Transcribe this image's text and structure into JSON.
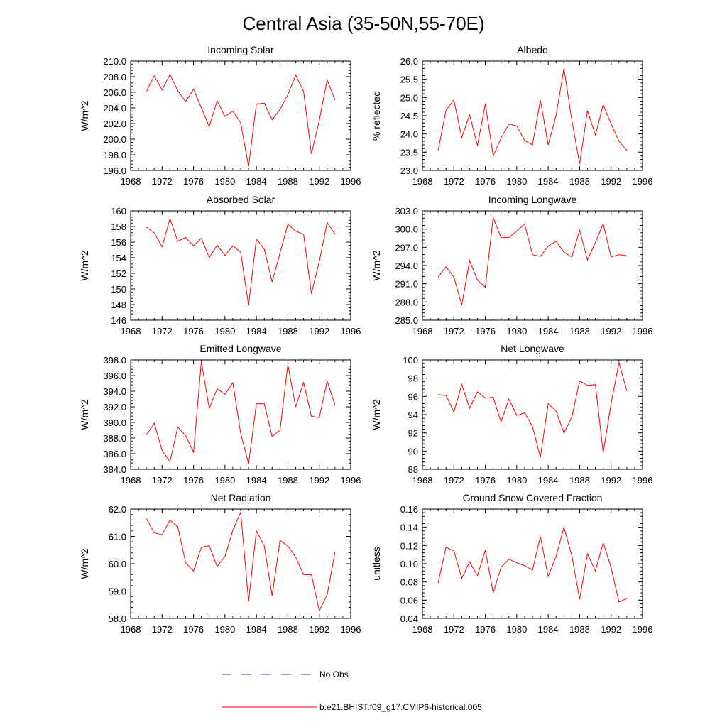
{
  "title": "Central Asia (35-50N,55-70E)",
  "x_ticks": [
    "1968",
    "1972",
    "1976",
    "1980",
    "1984",
    "1988",
    "1992",
    "1996"
  ],
  "legend": {
    "obs_label": "No Obs",
    "model_label": "b.e21.BHIST.f09_g17.CMIP6-historical.005",
    "obs_color": "#3a4fd0",
    "model_color": "#ff0000"
  },
  "chart_data": [
    {
      "type": "line",
      "title": "Incoming Solar",
      "ylabel": "W/m^2",
      "xlim": [
        1968,
        1996
      ],
      "ylim": [
        196,
        210
      ],
      "yticks": [
        196,
        198,
        200,
        202,
        204,
        206,
        208,
        210
      ],
      "ytick_labels": [
        "196.0",
        "198.0",
        "200.0",
        "202.0",
        "204.0",
        "206.0",
        "208.0",
        "210.0"
      ],
      "x": [
        1970,
        1971,
        1972,
        1973,
        1974,
        1975,
        1976,
        1977,
        1978,
        1979,
        1980,
        1981,
        1982,
        1983,
        1984,
        1985,
        1986,
        1987,
        1988,
        1989,
        1990,
        1991,
        1992,
        1993,
        1994
      ],
      "values": [
        206.1,
        208.1,
        206.3,
        208.3,
        206.2,
        204.8,
        206.4,
        204.0,
        201.6,
        204.9,
        202.9,
        203.6,
        202.1,
        196.5,
        204.5,
        204.6,
        202.5,
        203.8,
        205.7,
        208.2,
        206.1,
        198.1,
        202.4,
        207.6,
        205.0
      ]
    },
    {
      "type": "line",
      "title": "Albedo",
      "ylabel": "% reflected",
      "xlim": [
        1968,
        1996
      ],
      "ylim": [
        23.0,
        26.0
      ],
      "yticks": [
        23.0,
        23.5,
        24.0,
        24.5,
        25.0,
        25.5,
        26.0
      ],
      "ytick_labels": [
        "23.0",
        "23.5",
        "24.0",
        "24.5",
        "25.0",
        "25.5",
        "26.0"
      ],
      "x": [
        1970,
        1971,
        1972,
        1973,
        1974,
        1975,
        1976,
        1977,
        1978,
        1979,
        1980,
        1981,
        1982,
        1983,
        1984,
        1985,
        1986,
        1987,
        1988,
        1989,
        1990,
        1991,
        1992,
        1993,
        1994
      ],
      "values": [
        23.55,
        24.65,
        24.93,
        23.9,
        24.53,
        23.68,
        24.83,
        23.4,
        23.88,
        24.27,
        24.22,
        23.82,
        23.7,
        24.93,
        23.7,
        24.5,
        25.8,
        24.38,
        23.18,
        24.64,
        23.97,
        24.8,
        24.28,
        23.8,
        23.55
      ]
    },
    {
      "type": "line",
      "title": "Absorbed Solar",
      "ylabel": "W/m^2",
      "xlim": [
        1968,
        1996
      ],
      "ylim": [
        146,
        160
      ],
      "yticks": [
        146,
        148,
        150,
        152,
        154,
        156,
        158,
        160
      ],
      "ytick_labels": [
        "146",
        "148",
        "150",
        "152",
        "154",
        "156",
        "158",
        "160"
      ],
      "x": [
        1970,
        1971,
        1972,
        1973,
        1974,
        1975,
        1976,
        1977,
        1978,
        1979,
        1980,
        1981,
        1982,
        1983,
        1984,
        1985,
        1986,
        1987,
        1988,
        1989,
        1990,
        1991,
        1992,
        1993,
        1994
      ],
      "values": [
        157.9,
        157.2,
        155.4,
        159.0,
        156.1,
        156.6,
        155.5,
        156.5,
        154.0,
        155.6,
        154.3,
        155.5,
        154.7,
        147.9,
        156.4,
        155.1,
        150.9,
        154.6,
        158.3,
        157.4,
        157.0,
        149.4,
        153.5,
        158.5,
        157.0
      ]
    },
    {
      "type": "line",
      "title": "Incoming Longwave",
      "ylabel": "W/m^2",
      "xlim": [
        1968,
        1996
      ],
      "ylim": [
        285,
        303
      ],
      "yticks": [
        285,
        288,
        291,
        294,
        297,
        300,
        303
      ],
      "ytick_labels": [
        "285.0",
        "288.0",
        "291.0",
        "294.0",
        "297.0",
        "300.0",
        "303.0"
      ],
      "x": [
        1970,
        1971,
        1972,
        1973,
        1974,
        1975,
        1976,
        1977,
        1978,
        1979,
        1980,
        1981,
        1982,
        1983,
        1984,
        1985,
        1986,
        1987,
        1988,
        1989,
        1990,
        1991,
        1992,
        1993,
        1994
      ],
      "values": [
        292.1,
        293.8,
        292.1,
        287.5,
        294.8,
        291.6,
        290.4,
        301.9,
        298.6,
        298.6,
        299.7,
        300.8,
        295.8,
        295.5,
        297.2,
        298.0,
        296.2,
        295.4,
        299.8,
        294.9,
        297.8,
        300.9,
        295.4,
        295.8,
        295.6
      ]
    },
    {
      "type": "line",
      "title": "Emitted Longwave",
      "ylabel": "W/m^2",
      "xlim": [
        1968,
        1996
      ],
      "ylim": [
        384,
        398
      ],
      "yticks": [
        384,
        386,
        388,
        390,
        392,
        394,
        396,
        398
      ],
      "ytick_labels": [
        "384.0",
        "386.0",
        "388.0",
        "390.0",
        "392.0",
        "394.0",
        "396.0",
        "398.0"
      ],
      "x": [
        1970,
        1971,
        1972,
        1973,
        1974,
        1975,
        1976,
        1977,
        1978,
        1979,
        1980,
        1981,
        1982,
        1983,
        1984,
        1985,
        1986,
        1987,
        1988,
        1989,
        1990,
        1991,
        1992,
        1993,
        1994
      ],
      "values": [
        388.4,
        389.9,
        386.4,
        385.0,
        389.4,
        388.3,
        386.2,
        397.8,
        391.8,
        394.3,
        393.6,
        395.1,
        388.6,
        384.7,
        392.4,
        392.4,
        388.2,
        389.0,
        397.4,
        392.0,
        395.1,
        390.8,
        390.6,
        395.3,
        392.2
      ]
    },
    {
      "type": "line",
      "title": "Net Longwave",
      "ylabel": "W/m^2",
      "xlim": [
        1968,
        1996
      ],
      "ylim": [
        88,
        100
      ],
      "yticks": [
        88,
        90,
        92,
        94,
        96,
        98,
        100
      ],
      "ytick_labels": [
        "88",
        "90",
        "92",
        "94",
        "96",
        "98",
        "100"
      ],
      "x": [
        1970,
        1971,
        1972,
        1973,
        1974,
        1975,
        1976,
        1977,
        1978,
        1979,
        1980,
        1981,
        1982,
        1983,
        1984,
        1985,
        1986,
        1987,
        1988,
        1989,
        1990,
        1991,
        1992,
        1993,
        1994
      ],
      "values": [
        96.2,
        96.1,
        94.3,
        97.3,
        94.7,
        96.5,
        95.8,
        95.9,
        93.2,
        95.7,
        93.9,
        94.2,
        92.7,
        89.3,
        95.2,
        94.4,
        92.0,
        93.7,
        97.7,
        97.2,
        97.3,
        89.8,
        95.2,
        99.7,
        96.6
      ]
    },
    {
      "type": "line",
      "title": "Net Radiation",
      "ylabel": "W/m^2",
      "xlim": [
        1968,
        1996
      ],
      "ylim": [
        58,
        62
      ],
      "yticks": [
        58,
        59,
        60,
        61,
        62
      ],
      "ytick_labels": [
        "58.0",
        "59.0",
        "60.0",
        "61.0",
        "62.0"
      ],
      "x": [
        1970,
        1971,
        1972,
        1973,
        1974,
        1975,
        1976,
        1977,
        1978,
        1979,
        1980,
        1981,
        1982,
        1983,
        1984,
        1985,
        1986,
        1987,
        1988,
        1989,
        1990,
        1991,
        1992,
        1993,
        1994
      ],
      "values": [
        61.65,
        61.13,
        61.06,
        61.6,
        61.35,
        60.03,
        59.73,
        60.6,
        60.66,
        59.9,
        60.27,
        61.22,
        61.88,
        58.62,
        61.2,
        60.65,
        58.83,
        60.85,
        60.65,
        60.24,
        59.6,
        59.6,
        58.28,
        58.86,
        60.43
      ]
    },
    {
      "type": "line",
      "title": "Ground Snow Covered Fraction",
      "ylabel": "unitless",
      "xlim": [
        1968,
        1996
      ],
      "ylim": [
        0.04,
        0.16
      ],
      "yticks": [
        0.04,
        0.06,
        0.08,
        0.1,
        0.12,
        0.14,
        0.16
      ],
      "ytick_labels": [
        "0.04",
        "0.06",
        "0.08",
        "0.10",
        "0.12",
        "0.14",
        "0.16"
      ],
      "x": [
        1970,
        1971,
        1972,
        1973,
        1974,
        1975,
        1976,
        1977,
        1978,
        1979,
        1980,
        1981,
        1982,
        1983,
        1984,
        1985,
        1986,
        1987,
        1988,
        1989,
        1990,
        1991,
        1992,
        1993,
        1994
      ],
      "values": [
        0.079,
        0.118,
        0.114,
        0.084,
        0.102,
        0.087,
        0.115,
        0.068,
        0.096,
        0.105,
        0.101,
        0.098,
        0.093,
        0.13,
        0.086,
        0.108,
        0.14,
        0.109,
        0.061,
        0.111,
        0.092,
        0.123,
        0.096,
        0.058,
        0.062
      ]
    }
  ]
}
